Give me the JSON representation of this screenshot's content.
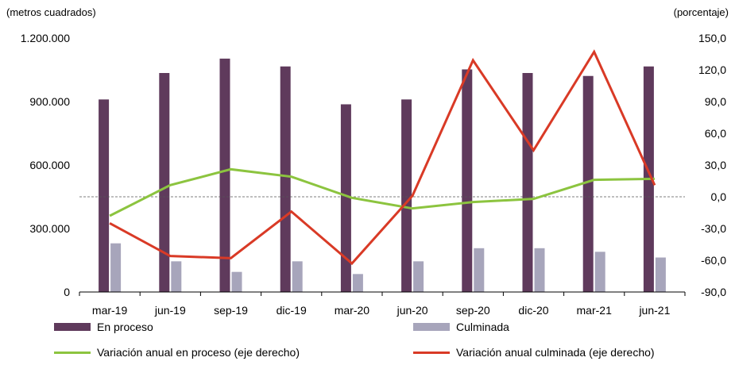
{
  "chart_data": {
    "type": "bar",
    "left_axis_unit": "(metros cuadrados)",
    "right_axis_unit": "(porcentaje)",
    "categories": [
      "mar-19",
      "jun-19",
      "sep-19",
      "dic-19",
      "mar-20",
      "jun-20",
      "sep-20",
      "dic-20",
      "mar-21",
      "jun-21"
    ],
    "ylim": [
      0,
      1200000
    ],
    "yticks": [
      0,
      300000,
      600000,
      900000,
      1200000
    ],
    "ytick_labels": [
      "0",
      "300.000",
      "600.000",
      "900.000",
      "1.200.000"
    ],
    "y2lim": [
      -90,
      150
    ],
    "y2ticks": [
      -90,
      -60,
      -30,
      0,
      30,
      60,
      90,
      120,
      150
    ],
    "y2tick_labels": [
      "-90,0",
      "-60,0",
      "-30,0",
      "0,0",
      "30,0",
      "60,0",
      "90,0",
      "120,0",
      "150,0"
    ],
    "series": [
      {
        "name": "En proceso",
        "kind": "bar",
        "axis": "left",
        "color": "#5f3a5c",
        "values": [
          910000,
          1035000,
          1103000,
          1066000,
          887000,
          910000,
          1052000,
          1035000,
          1021000,
          1066000
        ]
      },
      {
        "name": "Culminada",
        "kind": "bar",
        "axis": "left",
        "color": "#a7a5bb",
        "values": [
          230000,
          145000,
          95000,
          145000,
          85000,
          145000,
          207000,
          207000,
          190000,
          163000
        ]
      },
      {
        "name": "Variación anual en proceso (eje derecho)",
        "kind": "line",
        "axis": "right",
        "color": "#8cc43f",
        "values": [
          -18,
          11,
          26,
          19,
          -1,
          -11,
          -5,
          -2,
          16,
          17
        ]
      },
      {
        "name": "Variación anual culminada (eje derecho)",
        "kind": "line",
        "axis": "right",
        "color": "#d93a26",
        "values": [
          -25,
          -56,
          -58,
          -14,
          -63,
          1,
          129,
          44,
          137,
          11
        ]
      }
    ]
  }
}
